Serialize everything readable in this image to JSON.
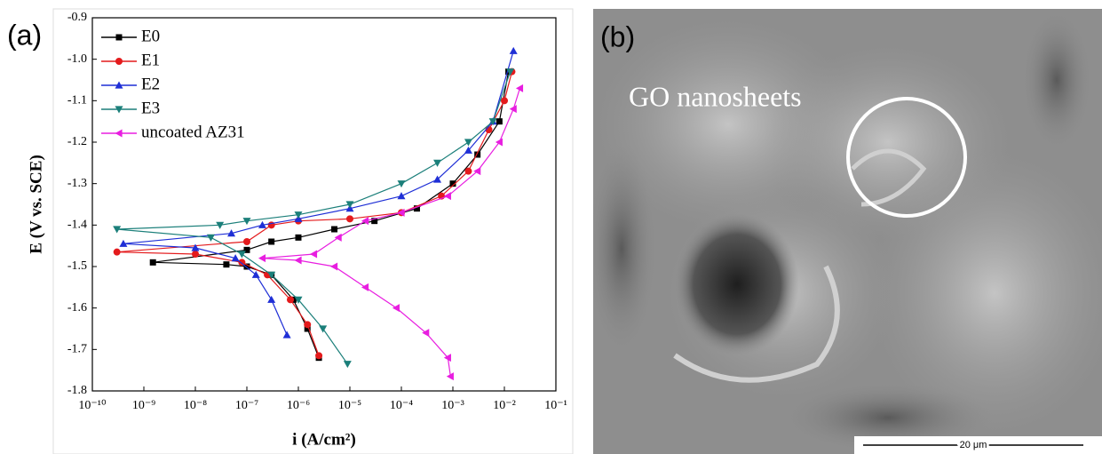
{
  "chart_data": {
    "type": "line",
    "panel_label": "(a)",
    "xlabel": "i (A/cm²)",
    "ylabel": "E (V vs. SCE)",
    "log_x": true,
    "xlim": [
      1e-10,
      0.1
    ],
    "xticks": [
      {
        "value": 1e-10,
        "label": "10⁻¹⁰"
      },
      {
        "value": 1e-09,
        "label": "10⁻⁹"
      },
      {
        "value": 1e-08,
        "label": "10⁻⁸"
      },
      {
        "value": 1e-07,
        "label": "10⁻⁷"
      },
      {
        "value": 1e-06,
        "label": "10⁻⁶"
      },
      {
        "value": 1e-05,
        "label": "10⁻⁵"
      },
      {
        "value": 0.0001,
        "label": "10⁻⁴"
      },
      {
        "value": 0.001,
        "label": "10⁻³"
      },
      {
        "value": 0.01,
        "label": "10⁻²"
      },
      {
        "value": 0.1,
        "label": "10⁻¹"
      }
    ],
    "ylim": [
      -1.8,
      -0.9
    ],
    "yticks": [
      -0.9,
      {
        "value": -1,
        "label": "-1.0"
      },
      -1.1,
      -1.2,
      -1.3,
      -1.4,
      -1.5,
      -1.6,
      -1.7,
      -1.8
    ],
    "legend": "top-left",
    "series": [
      {
        "name": "E0",
        "color": "#000000",
        "marker": "square",
        "x": [
          2.5e-06,
          1.5e-06,
          8e-07,
          3e-07,
          1e-07,
          4e-08,
          1.5e-09,
          1e-07,
          3e-07,
          1e-06,
          5e-06,
          3e-05,
          0.0002,
          0.001,
          0.003,
          0.008,
          0.012
        ],
        "values": [
          -1.72,
          -1.65,
          -1.58,
          -1.52,
          -1.5,
          -1.495,
          -1.49,
          -1.46,
          -1.44,
          -1.43,
          -1.41,
          -1.39,
          -1.36,
          -1.3,
          -1.23,
          -1.15,
          -1.03
        ]
      },
      {
        "name": "E1",
        "color": "#e41a1c",
        "marker": "circle",
        "x": [
          2.5e-06,
          1.5e-06,
          7e-07,
          2.5e-07,
          8e-08,
          1e-08,
          3e-10,
          1e-07,
          3e-07,
          1e-06,
          1e-05,
          0.0001,
          0.0006,
          0.002,
          0.005,
          0.01,
          0.014
        ],
        "values": [
          -1.715,
          -1.64,
          -1.58,
          -1.52,
          -1.49,
          -1.47,
          -1.465,
          -1.44,
          -1.4,
          -1.39,
          -1.385,
          -1.37,
          -1.33,
          -1.27,
          -1.17,
          -1.1,
          -1.03
        ]
      },
      {
        "name": "E2",
        "color": "#1f2fd6",
        "marker": "triangle-up",
        "x": [
          6e-07,
          3e-07,
          1.5e-07,
          6e-08,
          1e-08,
          4e-10,
          5e-08,
          2e-07,
          1e-06,
          1e-05,
          0.0001,
          0.0005,
          0.002,
          0.006,
          0.015
        ],
        "values": [
          -1.665,
          -1.58,
          -1.52,
          -1.48,
          -1.455,
          -1.445,
          -1.42,
          -1.4,
          -1.385,
          -1.36,
          -1.33,
          -1.29,
          -1.22,
          -1.15,
          -0.98
        ]
      },
      {
        "name": "E3",
        "color": "#1b7f7a",
        "marker": "triangle-down",
        "x": [
          9e-06,
          3e-06,
          1e-06,
          3e-07,
          8e-08,
          2e-08,
          3e-10,
          3e-08,
          1e-07,
          1e-06,
          1e-05,
          0.0001,
          0.0005,
          0.002,
          0.006,
          0.013
        ],
        "values": [
          -1.735,
          -1.65,
          -1.58,
          -1.52,
          -1.47,
          -1.43,
          -1.41,
          -1.4,
          -1.39,
          -1.375,
          -1.35,
          -1.3,
          -1.25,
          -1.2,
          -1.15,
          -1.03
        ]
      },
      {
        "name": "uncoated AZ31",
        "color": "#e81ee0",
        "marker": "triangle-left",
        "x": [
          0.0009,
          0.0008,
          0.0003,
          8e-05,
          2e-05,
          5e-06,
          1e-06,
          2e-07,
          2e-06,
          6e-06,
          2e-05,
          0.0001,
          0.0008,
          0.003,
          0.008,
          0.015,
          0.02
        ],
        "values": [
          -1.765,
          -1.72,
          -1.66,
          -1.6,
          -1.55,
          -1.5,
          -1.485,
          -1.48,
          -1.47,
          -1.43,
          -1.39,
          -1.37,
          -1.33,
          -1.27,
          -1.2,
          -1.12,
          -1.07
        ]
      }
    ]
  },
  "image": {
    "panel_label": "(b)",
    "annotation": "GO nanosheets",
    "scale_bar": "20 μm"
  }
}
